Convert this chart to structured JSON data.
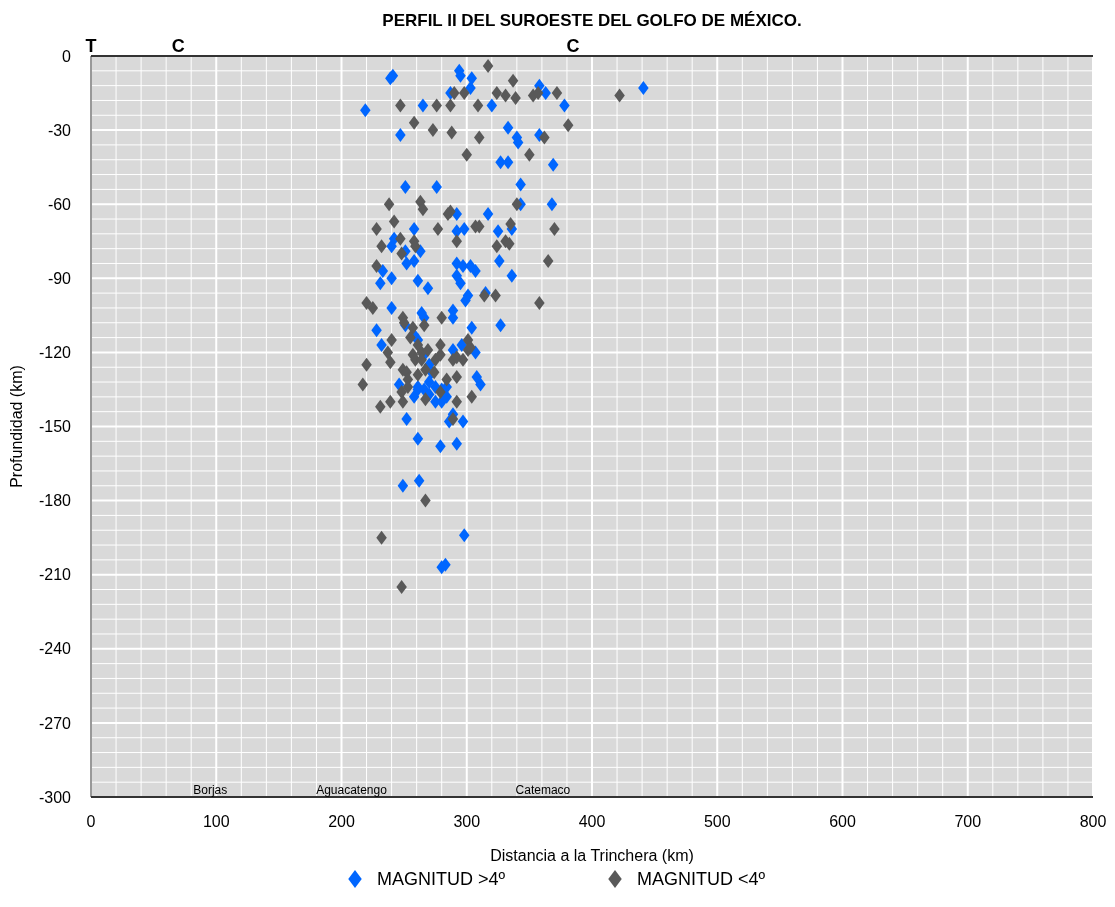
{
  "chart_data": {
    "type": "scatter",
    "title": "PERFIL II DEL SUROESTE DEL GOLFO DE MÉXICO.",
    "xlabel": "Distancia a la Trinchera (km)",
    "ylabel": "Profundidad (km)",
    "xlim": [
      0,
      800
    ],
    "xticks": [
      0,
      100,
      200,
      300,
      400,
      500,
      600,
      700,
      800
    ],
    "ylim": [
      -300,
      0
    ],
    "yticks": [
      -300,
      -270,
      -240,
      -210,
      -180,
      -150,
      -120,
      -90,
      -60,
      -30,
      0
    ],
    "grid": true,
    "legend": "bottom",
    "marker": "diamond",
    "annotations": [
      "T",
      "C",
      "C",
      "Borjas",
      "Aguacatengo",
      "Catemaco"
    ],
    "series": [
      {
        "name": "MAGNITUD >4º",
        "color": "#0066ff",
        "x": [
          219,
          239,
          241,
          247,
          265,
          276,
          251,
          287,
          294,
          295,
          304,
          303,
          320,
          333,
          340,
          341,
          327,
          333,
          343,
          343,
          292,
          317,
          358,
          358,
          363,
          378,
          369,
          368,
          441,
          242,
          240,
          251,
          252,
          233,
          240,
          231,
          240,
          228,
          251,
          232,
          246,
          252,
          249,
          262,
          280,
          283,
          298,
          258,
          298,
          292,
          325,
          336,
          263,
          258,
          292,
          297,
          303,
          307,
          292,
          295,
          326,
          336,
          261,
          269,
          301,
          299,
          315,
          327,
          304,
          289,
          289,
          264,
          266,
          258,
          261,
          289,
          307,
          296,
          266,
          270,
          308,
          311,
          272,
          284,
          270,
          275,
          280,
          261,
          266,
          270,
          275,
          258,
          261,
          284,
          289,
          286,
          297,
          261,
          279,
          292,
          280
        ],
        "values": [
          -22,
          -9,
          -8,
          -32,
          -20,
          -53,
          -53,
          -15,
          -6,
          -8,
          -9,
          -13,
          -20,
          -29,
          -33,
          -35,
          -43,
          -43,
          -52,
          -60,
          -64,
          -64,
          -32,
          -12,
          -15,
          -20,
          -44,
          -60,
          -13,
          -74,
          -77,
          -79,
          -84,
          -87,
          -90,
          -92,
          -102,
          -111,
          -109,
          -117,
          -133,
          -147,
          -174,
          -172,
          -207,
          -206,
          -194,
          -70,
          -70,
          -71,
          -71,
          -70,
          -79,
          -83,
          -84,
          -85,
          -85,
          -87,
          -89,
          -92,
          -83,
          -89,
          -91,
          -94,
          -97,
          -99,
          -96,
          -109,
          -110,
          -103,
          -106,
          -104,
          -106,
          -113,
          -115,
          -119,
          -120,
          -117,
          -121,
          -125,
          -130,
          -133,
          -128,
          -134,
          -132,
          -134,
          -135,
          -134,
          -135,
          -137,
          -140,
          -138,
          -135,
          -138,
          -145,
          -148,
          -148,
          -155,
          -158,
          -157,
          -140
        ]
      },
      {
        "name": "MAGNITUD <4º",
        "color": "#595959",
        "x": [
          317,
          337,
          247,
          276,
          287,
          290,
          298,
          309,
          324,
          331,
          353,
          357,
          372,
          258,
          273,
          288,
          310,
          300,
          350,
          381,
          362,
          339,
          238,
          263,
          287,
          422,
          242,
          228,
          247,
          232,
          248,
          228,
          220,
          225,
          249,
          240,
          237,
          239,
          220,
          249,
          217,
          248,
          239,
          231,
          249,
          267,
          232,
          248,
          258,
          259,
          265,
          285,
          292,
          277,
          324,
          331,
          334,
          335,
          307,
          310,
          314,
          323,
          358,
          365,
          370,
          340,
          266,
          257,
          255,
          250,
          280,
          261,
          264,
          257,
          259,
          264,
          269,
          267,
          279,
          284,
          292,
          297,
          301,
          301,
          289,
          292,
          274,
          279,
          252,
          253,
          253,
          261,
          267,
          279,
          292,
          304,
          289,
          303,
          275
        ],
        "values": [
          -4,
          -10,
          -20,
          -20,
          -20,
          -15,
          -15,
          -20,
          -15,
          -16,
          -16,
          -15,
          -15,
          -27,
          -30,
          -31,
          -33,
          -40,
          -40,
          -28,
          -33,
          -17,
          -60,
          -59,
          -63,
          -16,
          -67,
          -70,
          -74,
          -77,
          -80,
          -85,
          -100,
          -102,
          -106,
          -115,
          -120,
          -124,
          -125,
          -127,
          -133,
          -136,
          -140,
          -142,
          -140,
          -180,
          -195,
          -215,
          -75,
          -77,
          -62,
          -64,
          -75,
          -70,
          -77,
          -75,
          -76,
          -68,
          -69,
          -69,
          -97,
          -97,
          -100,
          -83,
          -70,
          -60,
          -109,
          -110,
          -114,
          -108,
          -106,
          -117,
          -120,
          -121,
          -123,
          -123,
          -119,
          -127,
          -117,
          -131,
          -130,
          -123,
          -115,
          -119,
          -123,
          -122,
          -128,
          -121,
          -128,
          -131,
          -134,
          -129,
          -139,
          -136,
          -140,
          -138,
          -147,
          -118,
          -123
        ]
      }
    ]
  }
}
